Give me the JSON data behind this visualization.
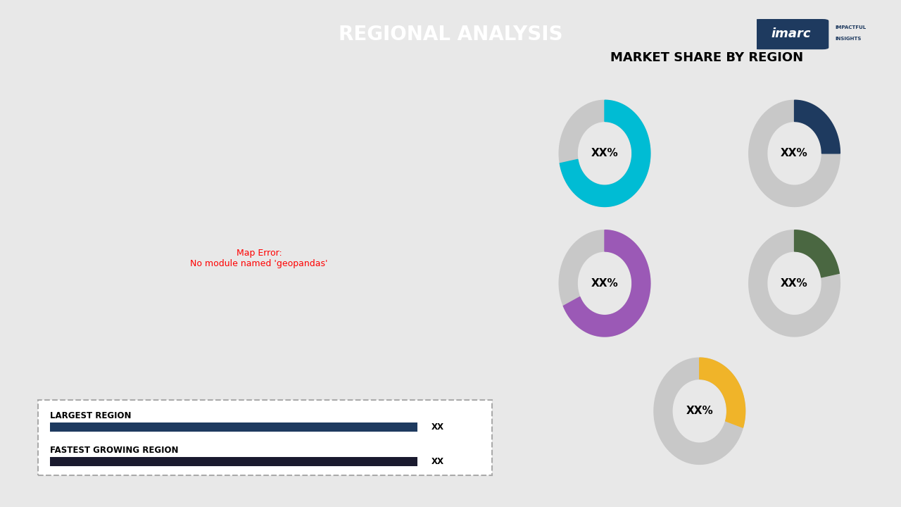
{
  "title": "REGIONAL ANALYSIS",
  "background_color": "#e8e8e8",
  "title_bg_color": "#1e3a5f",
  "title_text_color": "#ffffff",
  "right_title": "MARKET SHARE BY REGION",
  "donut_data": [
    {
      "label": "XX%",
      "color": "#00bcd4",
      "pct": 72
    },
    {
      "label": "XX%",
      "color": "#1e3a5f",
      "pct": 25
    },
    {
      "label": "XX%",
      "color": "#9b59b6",
      "pct": 68
    },
    {
      "label": "XX%",
      "color": "#4a6741",
      "pct": 22
    },
    {
      "label": "XX%",
      "color": "#f0b429",
      "pct": 30
    }
  ],
  "donut_gray": "#c8c8c8",
  "region_colors": {
    "North America": "#00bcd4",
    "Europe": "#2c4a7c",
    "Asia Pacific": "#9b59b6",
    "Middle East & Africa": "#f0b429",
    "Latin America": "#4a6741",
    "Other": "#c0c0c0"
  },
  "legend_items": [
    {
      "label": "LARGEST REGION",
      "bar_color": "#1e3a5f",
      "value": "XX"
    },
    {
      "label": "FASTEST GROWING REGION",
      "bar_color": "#1a1a2e",
      "value": "XX"
    }
  ],
  "imarc_color": "#1e3a5f",
  "pin_color": "#111111"
}
